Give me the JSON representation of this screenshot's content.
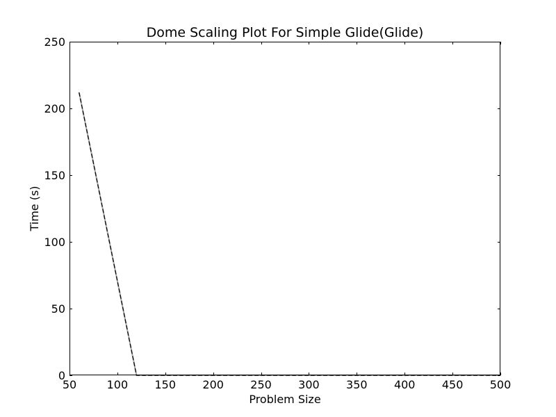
{
  "chart_data": {
    "type": "line",
    "title": "Dome  Scaling Plot For Simple Glide(Glide)",
    "xlabel": "Problem Size",
    "ylabel": "Time (s)",
    "xlim": [
      50,
      500
    ],
    "ylim": [
      0,
      250
    ],
    "xticks": [
      50,
      100,
      150,
      200,
      250,
      300,
      350,
      400,
      450,
      500
    ],
    "yticks": [
      0,
      50,
      100,
      150,
      200,
      250
    ],
    "grid": false,
    "series": [
      {
        "line_color": "#aaaaaa",
        "dash_color": "#000000",
        "x": [
          60,
          120,
          500
        ],
        "y": [
          212,
          0,
          0
        ]
      }
    ]
  }
}
